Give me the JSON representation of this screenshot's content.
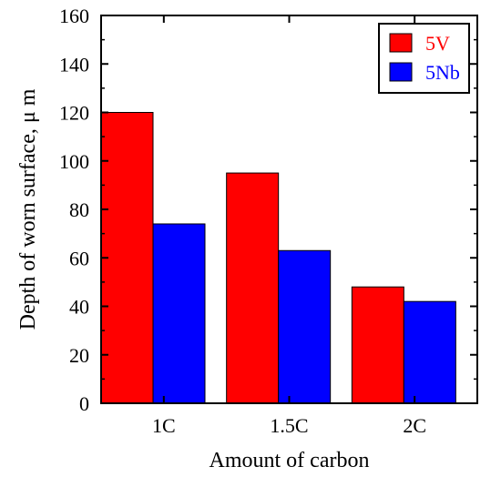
{
  "chart_data": {
    "type": "bar",
    "categories": [
      "1C",
      "1.5C",
      "2C"
    ],
    "series": [
      {
        "name": "5V",
        "values": [
          120,
          95,
          48
        ],
        "color": "#ff0000",
        "label_color": "#ff0000"
      },
      {
        "name": "5Nb",
        "values": [
          74,
          63,
          42
        ],
        "color": "#0000ff",
        "label_color": "#0000ff"
      }
    ],
    "title": "",
    "xlabel": "Amount of carbon",
    "ylabel": "Depth of worn surface, μ m",
    "ylim": [
      0,
      160
    ],
    "yticks": [
      "0",
      "20",
      "40",
      "60",
      "80",
      "100",
      "120",
      "140",
      "160"
    ],
    "grid": false,
    "legend_position": "top-right"
  }
}
